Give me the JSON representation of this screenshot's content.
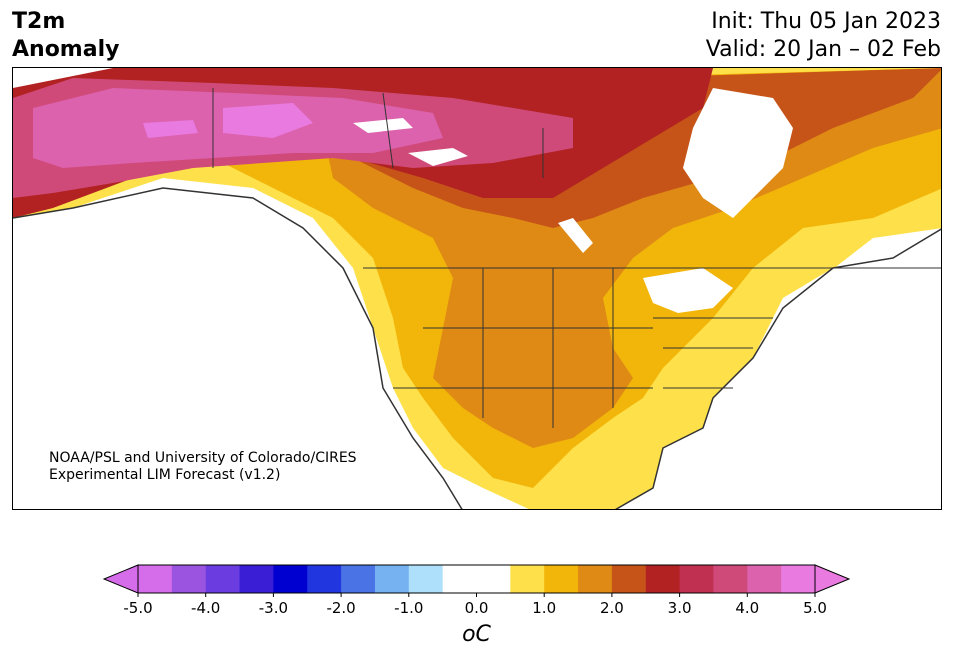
{
  "header": {
    "title_line1": "T2m",
    "title_line2": "Anomaly",
    "init": "Init: Thu 05 Jan 2023",
    "valid": "Valid: 20 Jan – 02 Feb"
  },
  "credit": {
    "line1": "NOAA/PSL and University of Colorado/CIRES",
    "line2": "Experimental LIM Forecast (v1.2)"
  },
  "colorbar": {
    "colors": [
      "#d56ce9",
      "#9a54e0",
      "#6b3de1",
      "#3a1ed6",
      "#0000d0",
      "#2236e0",
      "#4a73e6",
      "#76b2f2",
      "#aee0fb",
      "#ffffff",
      "#ffffff",
      "#fee14a",
      "#f2b60a",
      "#df8a14",
      "#c65418",
      "#b22222",
      "#c03050",
      "#cf4a78",
      "#dc62ae",
      "#e87ae0"
    ],
    "tick_labels": [
      "-5.0",
      "-4.0",
      "-3.0",
      "-2.0",
      "-1.0",
      "0.0",
      "1.0",
      "2.0",
      "3.0",
      "4.0",
      "5.0"
    ],
    "unit_label": "oC",
    "extend": "both"
  },
  "map": {
    "region": "North America",
    "variable": "2m temperature anomaly"
  }
}
